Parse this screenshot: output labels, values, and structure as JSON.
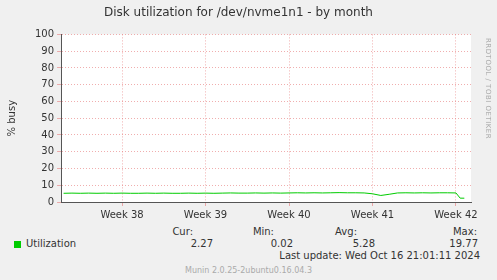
{
  "chart_data": {
    "type": "line",
    "title": "Disk utilization for /dev/nvme1n1 - by month",
    "y_label": "% busy",
    "x": [
      37.3,
      37.4,
      37.5,
      37.6,
      37.7,
      37.8,
      37.9,
      38.0,
      38.1,
      38.2,
      38.3,
      38.4,
      38.5,
      38.6,
      38.7,
      38.8,
      38.9,
      39.0,
      39.1,
      39.2,
      39.3,
      39.4,
      39.5,
      39.6,
      39.7,
      39.8,
      39.9,
      40.0,
      40.1,
      40.2,
      40.3,
      40.4,
      40.5,
      40.6,
      40.7,
      40.8,
      40.9,
      41.0,
      41.1,
      41.2,
      41.3,
      41.4,
      41.5,
      41.6,
      41.7,
      41.8,
      41.9,
      42.0,
      42.05,
      42.1
    ],
    "series": [
      {
        "name": "Utilization",
        "color": "#00cc00",
        "values": [
          5.2,
          5.3,
          5.2,
          5.3,
          5.2,
          5.3,
          5.2,
          5.3,
          5.2,
          5.2,
          5.3,
          5.2,
          5.3,
          5.2,
          5.2,
          5.3,
          5.2,
          5.3,
          5.2,
          5.3,
          5.4,
          5.3,
          5.3,
          5.4,
          5.3,
          5.4,
          5.3,
          5.4,
          5.5,
          5.4,
          5.5,
          5.4,
          5.5,
          5.6,
          5.5,
          5.5,
          5.4,
          4.9,
          3.9,
          4.6,
          5.4,
          5.5,
          5.4,
          5.5,
          5.4,
          5.5,
          5.5,
          5.4,
          2.3,
          2.27
        ],
        "summary": {
          "labels": [
            "Cur:",
            "Min:",
            "Avg:",
            "Max:"
          ],
          "values": [
            2.27,
            0.02,
            5.28,
            19.77
          ]
        }
      }
    ],
    "xlim": [
      37.27,
      42.18
    ],
    "xticks": [
      {
        "value": 38,
        "label": "Week 38"
      },
      {
        "value": 39,
        "label": "Week 39"
      },
      {
        "value": 40,
        "label": "Week 40"
      },
      {
        "value": 41,
        "label": "Week 41"
      },
      {
        "value": 42,
        "label": "Week 42"
      }
    ],
    "ylim": [
      0,
      100
    ],
    "yticks": [
      0,
      10,
      20,
      30,
      40,
      50,
      60,
      70,
      80,
      90,
      100
    ],
    "grid": true,
    "last_update": "Last update: Wed Oct 16 21:01:11 2024",
    "footer": "Munin 2.0.25-2ubuntu0.16.04.3",
    "watermark": "RRDTOOL / TOBI OETIKER"
  }
}
